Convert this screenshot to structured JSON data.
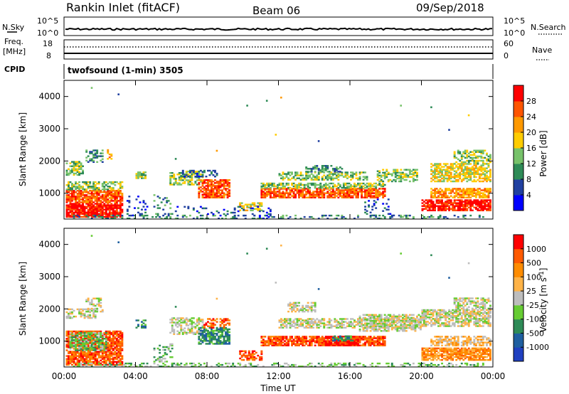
{
  "header": {
    "station": "Rankin Inlet (fitACF)",
    "beam": "Beam 06",
    "date": "09/Sep/2018"
  },
  "nsky_panel": {
    "left_label": "N.Sky",
    "left_ticks": [
      "10^5",
      "10^0"
    ],
    "right_label": "N.Search",
    "right_ticks": [
      "10^5",
      "10^0"
    ]
  },
  "freq_panel": {
    "left_label_1": "Freq.",
    "left_label_2": "[MHz]",
    "left_ticks": [
      "18",
      "8"
    ],
    "right_label": "Nave",
    "right_ticks": [
      "60",
      "0"
    ]
  },
  "cpid": {
    "label": "CPID",
    "value": "twofsound (1-min) 3505"
  },
  "colors": {
    "power_scale": [
      "#0000ff",
      "#2040a0",
      "#2e8b57",
      "#77c26a",
      "#ffcc00",
      "#ff9900",
      "#ff5500",
      "#ff0000"
    ],
    "velocity_scale": [
      "#2040c0",
      "#1f5fa0",
      "#2e8b57",
      "#66cc33",
      "#bdbdbd",
      "#ffb347",
      "#ff8c00",
      "#ff5a00",
      "#ff0000"
    ]
  },
  "chart_data": [
    {
      "type": "heatmap",
      "panel": "power",
      "ylabel": "Slant Range [km]",
      "yticks": [
        "4000",
        "3000",
        "2000",
        "1000"
      ],
      "ytick_values": [
        4000,
        3000,
        2000,
        1000
      ],
      "ylim": [
        200,
        4500
      ],
      "xlim": [
        0,
        24
      ],
      "colorbar_label": "Power [dB]",
      "colorbar_ticks": [
        "28",
        "24",
        "20",
        "16",
        "12",
        "8",
        "4"
      ],
      "colorbar_range": [
        0,
        32
      ]
    },
    {
      "type": "heatmap",
      "panel": "velocity",
      "ylabel": "Slant Range [km]",
      "xlabel": "Time UT",
      "xticks": [
        "00:00",
        "04:00",
        "08:00",
        "12:00",
        "16:00",
        "20:00",
        "00:00"
      ],
      "xtick_values": [
        0,
        4,
        8,
        12,
        16,
        20,
        24
      ],
      "yticks": [
        "4000",
        "3000",
        "2000",
        "1000"
      ],
      "ytick_values": [
        4000,
        3000,
        2000,
        1000
      ],
      "ylim": [
        200,
        4500
      ],
      "xlim": [
        0,
        24
      ],
      "colorbar_label": "Velocity [m s^-1]",
      "colorbar_ticks": [
        "1000",
        "500",
        "100",
        "25",
        "-25",
        "-100",
        "-500",
        "-1000"
      ]
    }
  ]
}
